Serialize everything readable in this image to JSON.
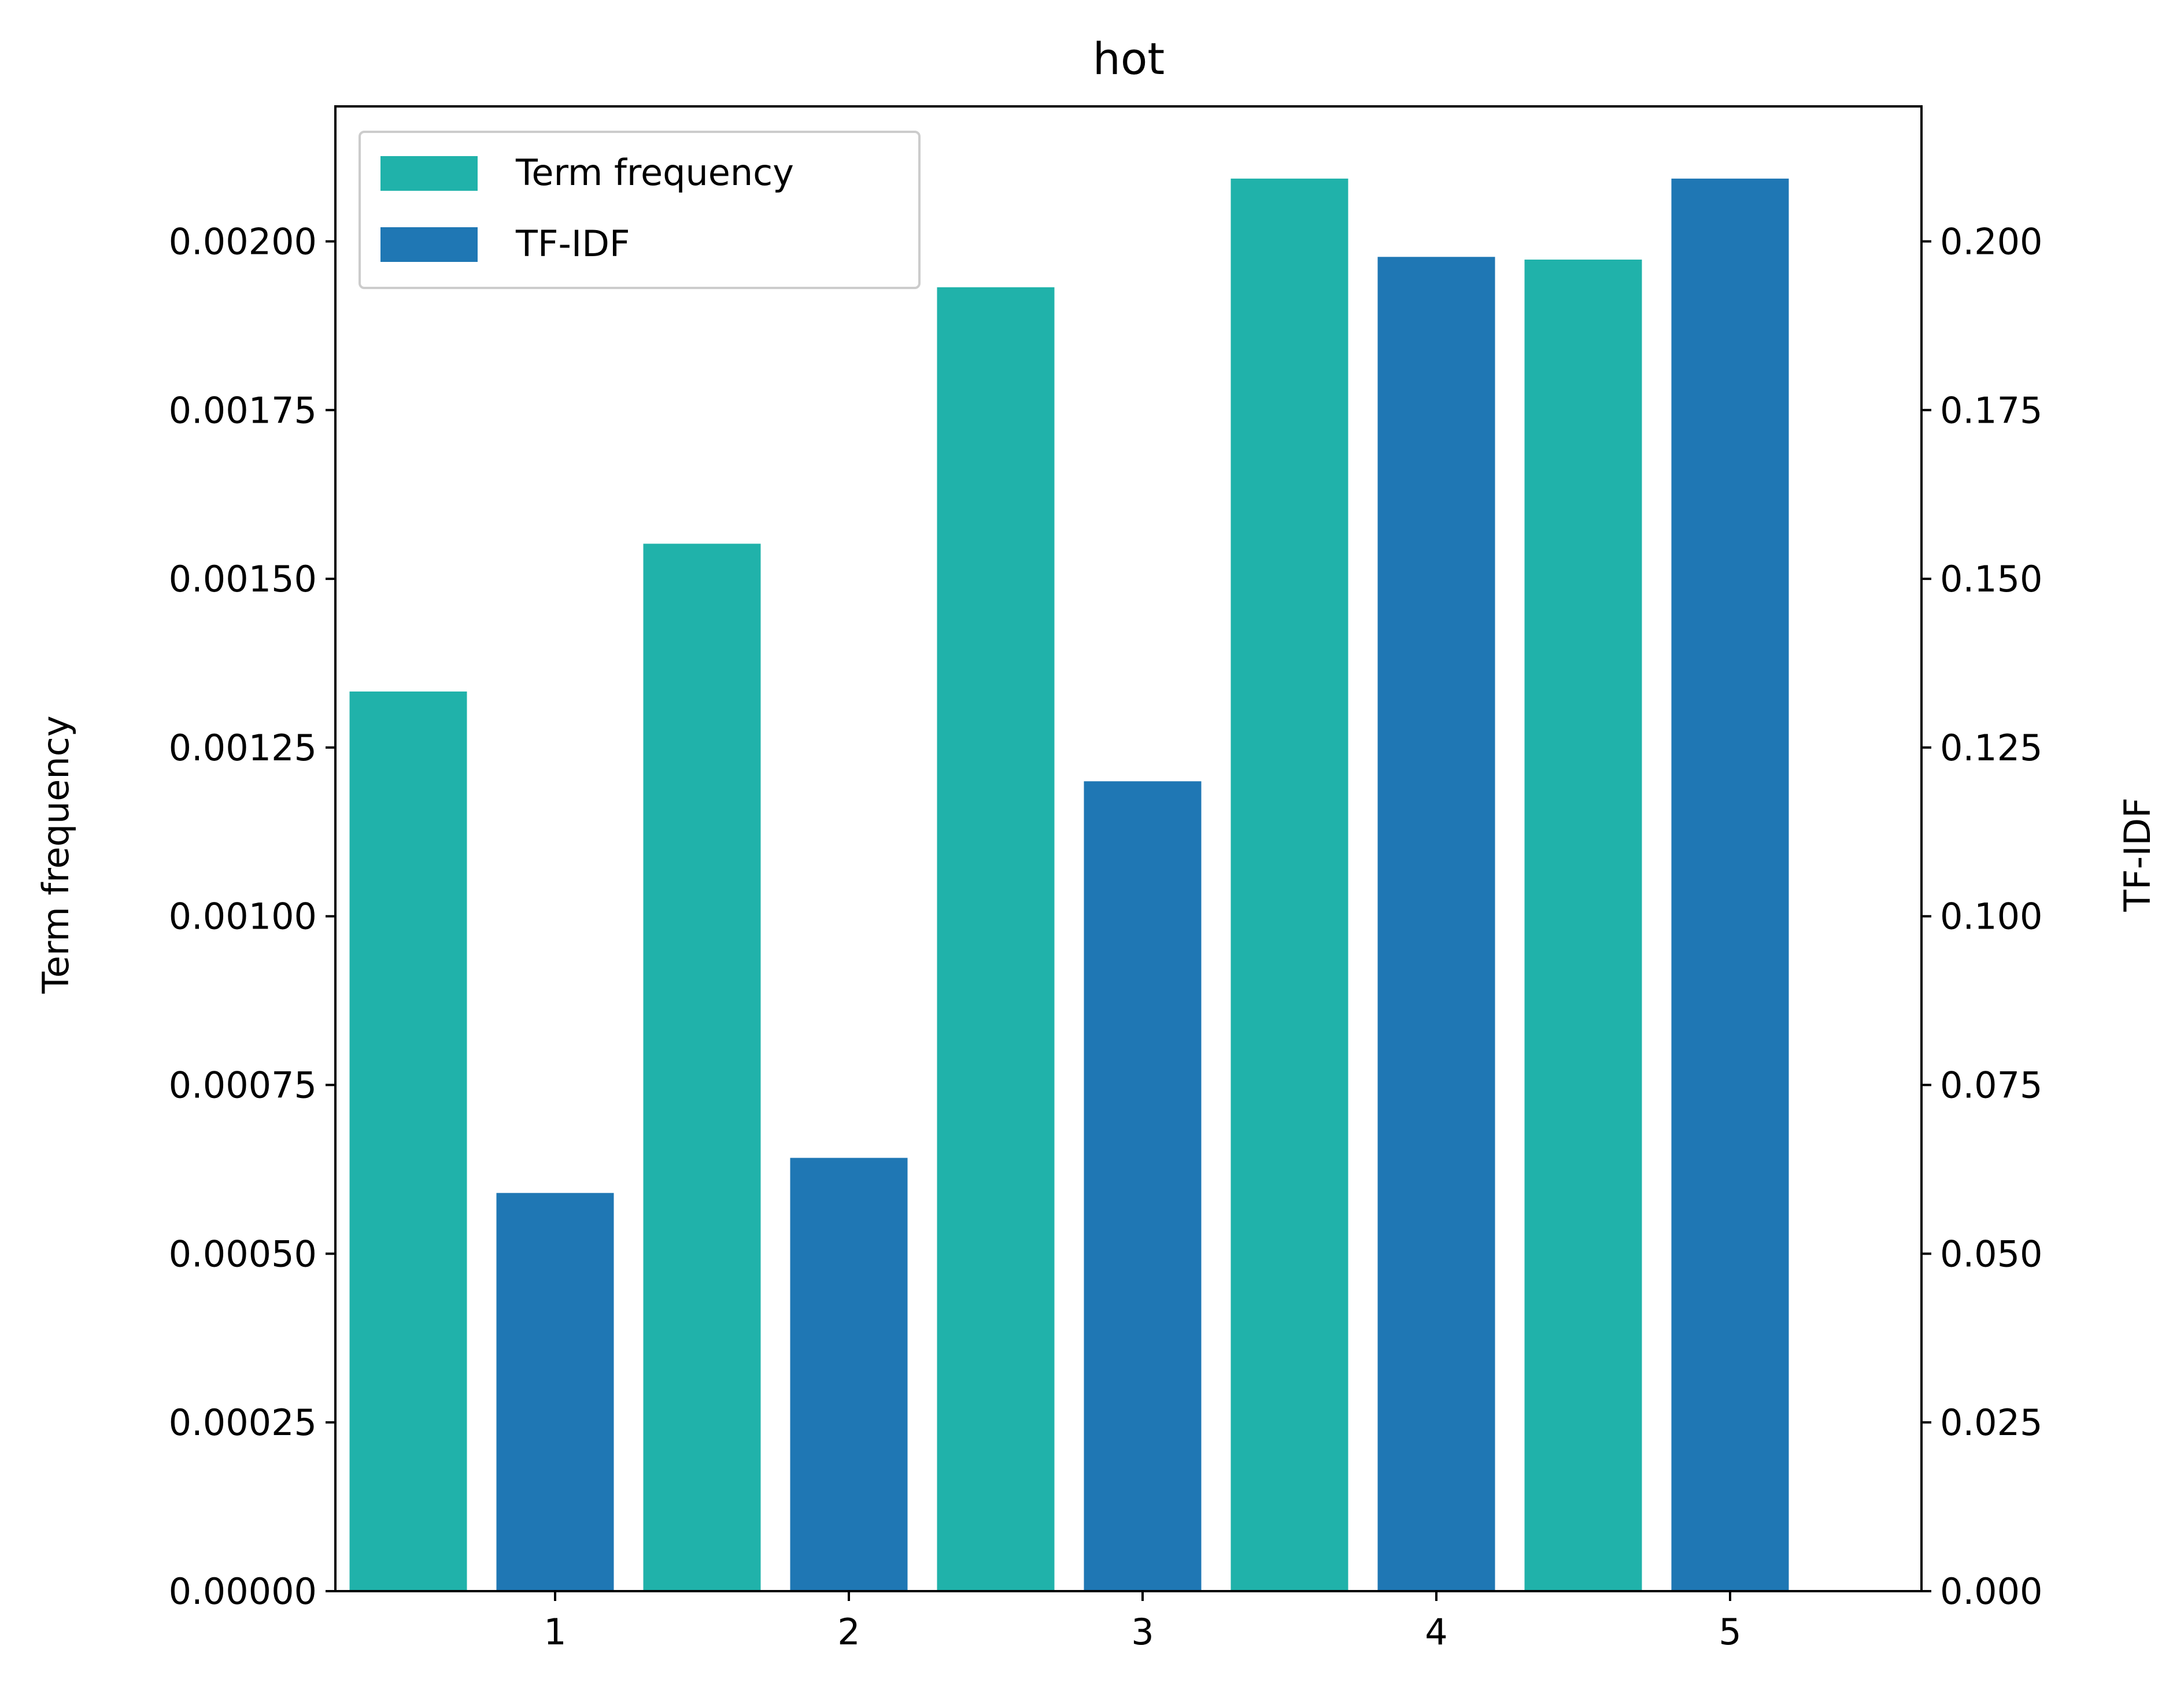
{
  "chart_data": {
    "type": "bar",
    "title": "hot",
    "categories": [
      "1",
      "2",
      "3",
      "4",
      "5"
    ],
    "series": [
      {
        "name": "Term frequency",
        "axis": "left",
        "color": "#20b2aa",
        "values": [
          0.001333,
          0.001552,
          0.001932,
          0.002093,
          0.001973
        ]
      },
      {
        "name": "TF-IDF",
        "axis": "right",
        "color": "#1f77b4",
        "values": [
          0.059,
          0.0642,
          0.12,
          0.1977,
          0.2093
        ]
      }
    ],
    "xlabel": "",
    "ylabel_left": "Term frequency",
    "ylabel_right": "TF-IDF",
    "ylim_left": [
      0,
      0.0022
    ],
    "ylim_right": [
      0,
      0.22
    ],
    "yticks_left": [
      "0.00000",
      "0.00025",
      "0.00050",
      "0.00075",
      "0.00100",
      "0.00125",
      "0.00150",
      "0.00175",
      "0.00200"
    ],
    "yticks_right": [
      "0.000",
      "0.025",
      "0.050",
      "0.075",
      "0.100",
      "0.125",
      "0.150",
      "0.175",
      "0.200"
    ],
    "legend_position": "top-left",
    "grid": false
  }
}
